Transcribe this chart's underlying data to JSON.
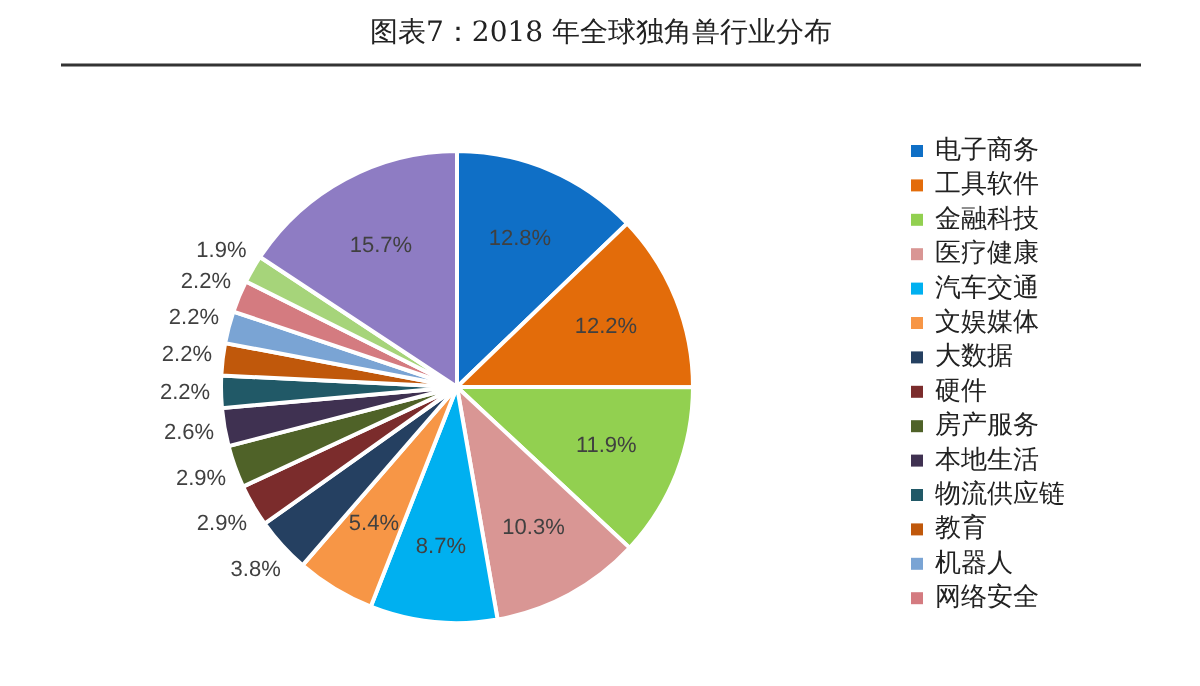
{
  "chart_data": {
    "type": "pie",
    "title": "图表7：2018 年全球独角兽行业分布",
    "categories": [
      "电子商务",
      "工具软件",
      "金融科技",
      "医疗健康",
      "汽车交通",
      "文娱媒体",
      "大数据",
      "硬件",
      "房产服务",
      "本地生活",
      "物流供应链",
      "教育",
      "机器人",
      "网络安全",
      null,
      null
    ],
    "values": [
      12.8,
      12.2,
      11.9,
      10.3,
      8.7,
      5.4,
      3.8,
      2.9,
      2.9,
      2.6,
      2.2,
      2.2,
      2.2,
      2.2,
      1.9,
      15.7
    ],
    "colors": [
      "#0f6fc6",
      "#e36c0a",
      "#92d050",
      "#d99694",
      "#00b0f0",
      "#f79646",
      "#254061",
      "#7b2c2c",
      "#4f6228",
      "#3f3151",
      "#215967",
      "#c0580b",
      "#7aa4d4",
      "#d47b80",
      "#a6d47a",
      "#8e7cc3"
    ],
    "value_labels": [
      "12.8%",
      "12.2%",
      "11.9%",
      "10.3%",
      "8.7%",
      "5.4%",
      "3.8%",
      "2.9%",
      "2.9%",
      "2.6%",
      "2.2%",
      "2.2%",
      "2.2%",
      "2.2%",
      "1.9%",
      "15.7%"
    ],
    "legend": "right"
  }
}
